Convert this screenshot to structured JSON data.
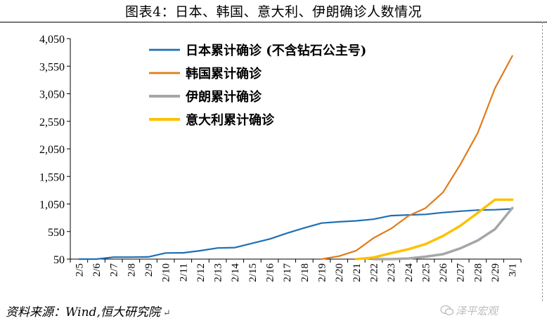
{
  "header": {
    "title": "图表4：日本、韩国、意大利、伊朗确诊人数情况"
  },
  "footer": {
    "source": "资料来源：Wind,恒大研究院",
    "brand": "泽平宏观",
    "para_mark": "↵"
  },
  "chart_data": {
    "type": "line",
    "title": "",
    "xlabel": "",
    "ylabel": "",
    "x": [
      "2/5",
      "2/6",
      "2/7",
      "2/8",
      "2/9",
      "2/10",
      "2/11",
      "2/12",
      "2/13",
      "2/14",
      "2/15",
      "2/16",
      "2/17",
      "2/18",
      "2/19",
      "2/20",
      "2/21",
      "2/22",
      "2/23",
      "2/24",
      "2/25",
      "2/26",
      "2/27",
      "2/28",
      "2/29",
      "3/1"
    ],
    "ylim": [
      50,
      4050
    ],
    "yticks": [
      50,
      550,
      1050,
      1550,
      2050,
      2550,
      3050,
      3550,
      4050
    ],
    "ytick_labels": [
      "50",
      "550",
      "1,050",
      "1,550",
      "2,050",
      "2,550",
      "3,050",
      "3,550",
      "4,050"
    ],
    "grid": false,
    "legend_position": "top-center",
    "series": [
      {
        "name": "日本累计确诊 (不含钻石公主号)",
        "color": "#1f6fb4",
        "width": 2.2,
        "values": [
          45,
          45,
          86,
          86,
          89,
          161,
          163,
          203,
          251,
          259,
          338,
          414,
          520,
          616,
          704,
          727,
          744,
          773,
          838,
          851,
          862,
          894,
          919,
          939,
          946,
          961
        ]
      },
      {
        "name": "韩国累计确诊",
        "color": "#e07b1a",
        "width": 2.2,
        "values": [
          null,
          null,
          null,
          null,
          null,
          null,
          null,
          null,
          null,
          null,
          null,
          null,
          null,
          null,
          31,
          104,
          204,
          433,
          602,
          833,
          977,
          1261,
          1766,
          2337,
          3150,
          3736
        ]
      },
      {
        "name": "伊朗累计确诊",
        "color": "#a6a6a6",
        "width": 3.5,
        "values": [
          null,
          null,
          null,
          null,
          null,
          null,
          null,
          null,
          null,
          null,
          null,
          null,
          null,
          null,
          null,
          null,
          null,
          28,
          43,
          61,
          95,
          139,
          245,
          388,
          593,
          978
        ]
      },
      {
        "name": "意大利累计确诊",
        "color": "#ffc000",
        "width": 3.5,
        "values": [
          null,
          null,
          null,
          null,
          null,
          null,
          null,
          null,
          null,
          null,
          null,
          null,
          null,
          null,
          null,
          null,
          20,
          79,
          157,
          229,
          323,
          470,
          655,
          888,
          1128,
          1128
        ]
      }
    ]
  }
}
